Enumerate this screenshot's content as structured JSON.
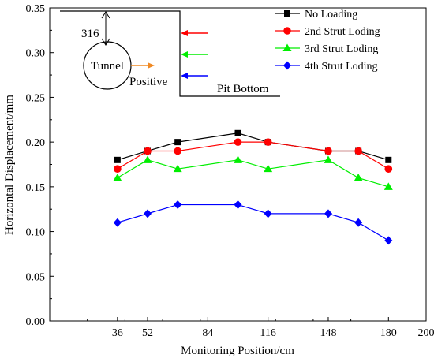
{
  "chart_data": {
    "type": "line",
    "xlabel": "Monitoring Position/cm",
    "ylabel": "Horizontal Displacement/mm",
    "xlim": [
      0,
      200
    ],
    "ylim": [
      0,
      0.35
    ],
    "xticks": [
      36,
      52,
      84,
      116,
      148,
      180,
      200
    ],
    "yticks": [
      0.0,
      0.05,
      0.1,
      0.15,
      0.2,
      0.25,
      0.3,
      0.35
    ],
    "ytick_labels": [
      "0.00",
      "0.05",
      "0.10",
      "0.15",
      "0.20",
      "0.25",
      "0.30",
      "0.35"
    ],
    "grid": false,
    "legend_position": "top-right",
    "x": [
      36,
      52,
      68,
      100,
      116,
      148,
      164,
      180
    ],
    "series": [
      {
        "name": "No Loading",
        "color": "#000000",
        "marker": "square",
        "values": [
          0.18,
          0.19,
          0.2,
          0.21,
          0.2,
          0.19,
          0.19,
          0.18
        ]
      },
      {
        "name": "2nd Strut Loding",
        "color": "#ff0000",
        "marker": "circle",
        "values": [
          0.17,
          0.19,
          0.19,
          0.2,
          0.2,
          0.19,
          0.19,
          0.17
        ]
      },
      {
        "name": "3rd Strut Loding",
        "color": "#00ee00",
        "marker": "triangle",
        "values": [
          0.16,
          0.18,
          0.17,
          0.18,
          0.17,
          0.18,
          0.16,
          0.15
        ]
      },
      {
        "name": "4th Strut Loding",
        "color": "#0000ff",
        "marker": "diamond",
        "values": [
          0.11,
          0.12,
          0.13,
          0.13,
          0.12,
          0.12,
          0.11,
          0.09
        ]
      }
    ],
    "inset": {
      "depth_label": "316",
      "tunnel_label": "Tunnel",
      "positive_label": "Positive",
      "pit_bottom_label": "Pit Bottom",
      "arrow_colors": [
        "#ff0000",
        "#00ee00",
        "#0000ff"
      ],
      "positive_arrow_color": "#f08a24"
    }
  }
}
